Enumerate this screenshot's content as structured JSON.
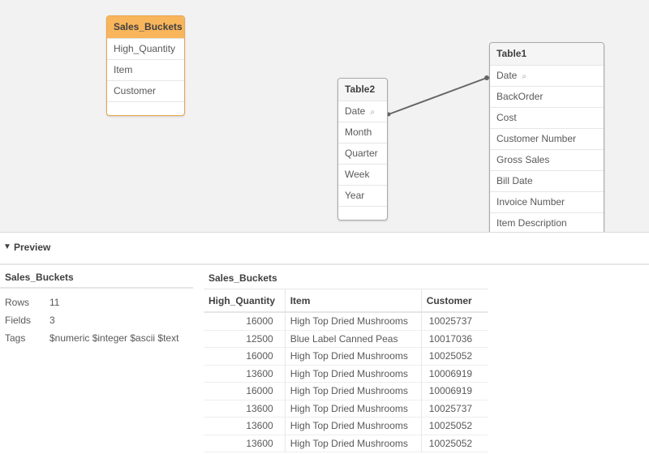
{
  "colors": {
    "selected_header": "#f9b55c",
    "canvas_bg": "#f2f2f2",
    "link_line": "#666666"
  },
  "model": {
    "tables": [
      {
        "name": "Sales_Buckets",
        "selected": true,
        "fields": [
          {
            "name": "High_Quantity"
          },
          {
            "name": "Item"
          },
          {
            "name": "Customer"
          }
        ]
      },
      {
        "name": "Table2",
        "selected": false,
        "fields": [
          {
            "name": "Date",
            "key": true
          },
          {
            "name": "Month"
          },
          {
            "name": "Quarter"
          },
          {
            "name": "Week"
          },
          {
            "name": "Year"
          }
        ]
      },
      {
        "name": "Table1",
        "selected": false,
        "fields": [
          {
            "name": "Date",
            "key": true
          },
          {
            "name": "BackOrder"
          },
          {
            "name": "Cost"
          },
          {
            "name": "Customer Number"
          },
          {
            "name": "Gross Sales"
          },
          {
            "name": "Bill Date"
          },
          {
            "name": "Invoice Number"
          },
          {
            "name": "Item Description"
          }
        ]
      }
    ],
    "key_icon": "key-icon"
  },
  "preview": {
    "label": "Preview",
    "toggle_icon": "triangle-down-icon",
    "summary": {
      "title": "Sales_Buckets",
      "rows": [
        {
          "k": "Rows",
          "v": "11"
        },
        {
          "k": "Fields",
          "v": "3"
        },
        {
          "k": "Tags",
          "v": "$numeric $integer $ascii $text"
        }
      ]
    },
    "table": {
      "title": "Sales_Buckets",
      "columns": [
        "High_Quantity",
        "Item",
        "Customer"
      ],
      "rows": [
        [
          "16000",
          "High Top Dried Mushrooms",
          "10025737"
        ],
        [
          "12500",
          "Blue Label Canned Peas",
          "10017036"
        ],
        [
          "16000",
          "High Top Dried Mushrooms",
          "10025052"
        ],
        [
          "13600",
          "High Top Dried Mushrooms",
          "10006919"
        ],
        [
          "16000",
          "High Top Dried Mushrooms",
          "10006919"
        ],
        [
          "13600",
          "High Top Dried Mushrooms",
          "10025737"
        ],
        [
          "13600",
          "High Top Dried Mushrooms",
          "10025052"
        ],
        [
          "13600",
          "High Top Dried Mushrooms",
          "10025052"
        ]
      ]
    }
  }
}
